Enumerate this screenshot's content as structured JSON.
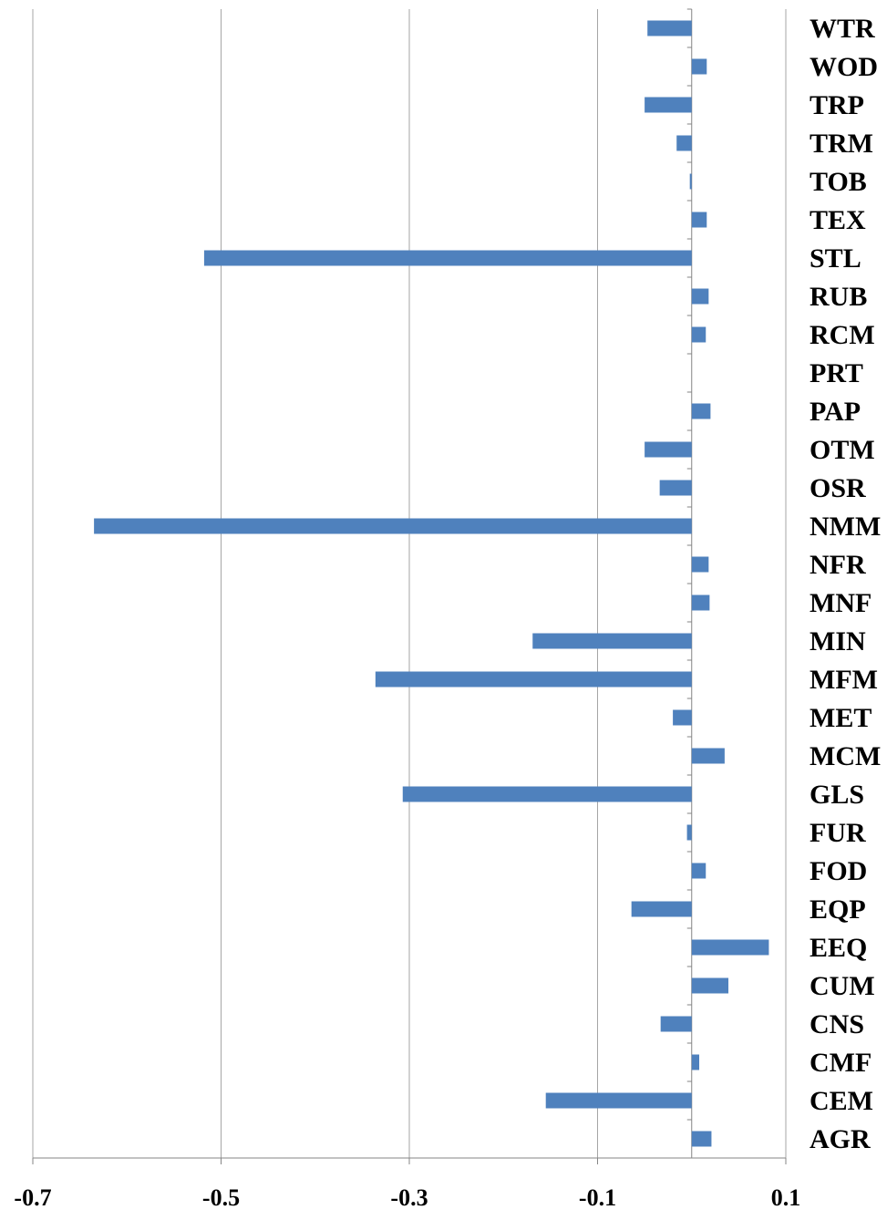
{
  "chart_data": {
    "type": "bar",
    "orientation": "horizontal",
    "categories": [
      "WTR",
      "WOD",
      "TRP",
      "TRM",
      "TOB",
      "TEX",
      "STL",
      "RUB",
      "RCM",
      "PRT",
      "PAP",
      "OTM",
      "OSR",
      "NMM",
      "NFR",
      "MNF",
      "MIN",
      "MFM",
      "MET",
      "MCM",
      "GLS",
      "FUR",
      "FOD",
      "EQP",
      "EEQ",
      "CUM",
      "CNS",
      "CMF",
      "CEM",
      "AGR"
    ],
    "values": [
      -0.047,
      0.016,
      -0.05,
      -0.016,
      -0.002,
      0.016,
      -0.518,
      0.018,
      0.015,
      0.0,
      0.02,
      -0.05,
      -0.034,
      -0.635,
      0.018,
      0.019,
      -0.169,
      -0.336,
      -0.02,
      0.035,
      -0.307,
      -0.005,
      0.015,
      -0.064,
      0.082,
      0.039,
      -0.033,
      0.008,
      -0.155,
      0.021
    ],
    "xlim": [
      -0.7,
      0.1
    ],
    "xticks": [
      "-0.7",
      "-0.5",
      "-0.3",
      "-0.1",
      "0.1"
    ],
    "grid": "vertical",
    "title": "",
    "xlabel": "",
    "ylabel": "",
    "bar_color": "#4f81bd",
    "grid_color": "#a6a6a6",
    "axis_color": "#868686"
  }
}
